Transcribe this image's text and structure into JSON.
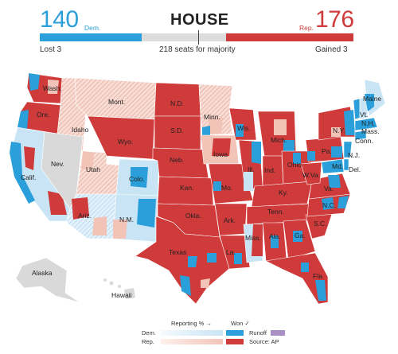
{
  "header": {
    "title": "HOUSE",
    "dem_count": "140",
    "dem_label": "Dem.",
    "rep_count": "176",
    "rep_label": "Rep.",
    "dem_change": "Lost 3",
    "rep_change": "Gained 3",
    "majority_text": "218 seats for majority"
  },
  "map": {
    "state_labels": [
      "Wash.",
      "Ore.",
      "Idaho",
      "Mont.",
      "Wyo.",
      "Nev.",
      "Calif.",
      "Utah",
      "Colo.",
      "Ariz.",
      "N.M.",
      "N.D.",
      "S.D.",
      "Neb.",
      "Kan.",
      "Okla.",
      "Texas",
      "Minn.",
      "Iowa",
      "Mo.",
      "Ark.",
      "La.",
      "Wis.",
      "Ill.",
      "Mich.",
      "Ind.",
      "Ohio",
      "Ky.",
      "Tenn.",
      "Miss.",
      "Ala.",
      "Ga.",
      "Fla.",
      "S.C.",
      "N.C.",
      "Va.",
      "W.Va.",
      "Pa.",
      "N.Y.",
      "Md.",
      "Del.",
      "N.J.",
      "Conn.",
      "Mass.",
      "Vt.",
      "N.H.",
      "Maine",
      "Alaska",
      "Hawaii"
    ]
  },
  "legend": {
    "reporting_label": "Reporting % →",
    "won_label": "Won ✓",
    "dem_label": "Dem.",
    "rep_label": "Rep.",
    "runoff_label": "Runoff",
    "source_label": "Source: AP"
  },
  "colors": {
    "dem": "#2b9fd9",
    "rep": "#cf3a3a",
    "dem_light": "#c9e4f4",
    "rep_light": "#f2c4b8",
    "neutral": "#d9d9d9",
    "runoff": "#a88fc4"
  }
}
